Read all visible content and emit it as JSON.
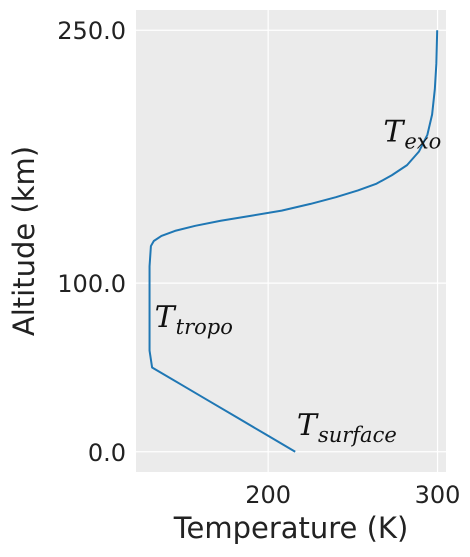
{
  "chart_data": {
    "type": "line",
    "title": "",
    "xlabel": "Temperature (K)",
    "ylabel": "Altitude (km)",
    "xlim": [
      122,
      305
    ],
    "ylim": [
      -12,
      262
    ],
    "xticks": [
      {
        "value": 200,
        "label": "200"
      },
      {
        "value": 300,
        "label": "300"
      }
    ],
    "yticks": [
      {
        "value": 0,
        "label": "0.0"
      },
      {
        "value": 100,
        "label": "100.0"
      },
      {
        "value": 250,
        "label": "250.0"
      }
    ],
    "grid": true,
    "series": [
      {
        "color": "#1f77b4",
        "points": [
          [
            216.0,
            0
          ],
          [
            199.1,
            10
          ],
          [
            182.2,
            20
          ],
          [
            165.3,
            30
          ],
          [
            148.4,
            40
          ],
          [
            131.5,
            50
          ],
          [
            130.0,
            60
          ],
          [
            130.0,
            70
          ],
          [
            130.0,
            80
          ],
          [
            130.0,
            90
          ],
          [
            130.0,
            100
          ],
          [
            130.0,
            110
          ],
          [
            130.8,
            122
          ],
          [
            132.5,
            125
          ],
          [
            137.0,
            128
          ],
          [
            145.0,
            131
          ],
          [
            157.0,
            134
          ],
          [
            172.0,
            137
          ],
          [
            190.0,
            140
          ],
          [
            208.0,
            143
          ],
          [
            225.0,
            147
          ],
          [
            240.0,
            151
          ],
          [
            253.0,
            155
          ],
          [
            264.0,
            159
          ],
          [
            273.0,
            164
          ],
          [
            282.0,
            170
          ],
          [
            289.0,
            178
          ],
          [
            294.0,
            188
          ],
          [
            296.8,
            200
          ],
          [
            298.4,
            215
          ],
          [
            299.3,
            230
          ],
          [
            299.8,
            250
          ]
        ]
      }
    ],
    "annotations": [
      {
        "id": "surface",
        "main": "T",
        "sub": "surface",
        "x": 217,
        "y": 10
      },
      {
        "id": "tropo",
        "main": "T",
        "sub": "tropo",
        "x": 133,
        "y": 74
      },
      {
        "id": "exo",
        "main": "T",
        "sub": "exo",
        "x": 268,
        "y": 184
      }
    ]
  }
}
